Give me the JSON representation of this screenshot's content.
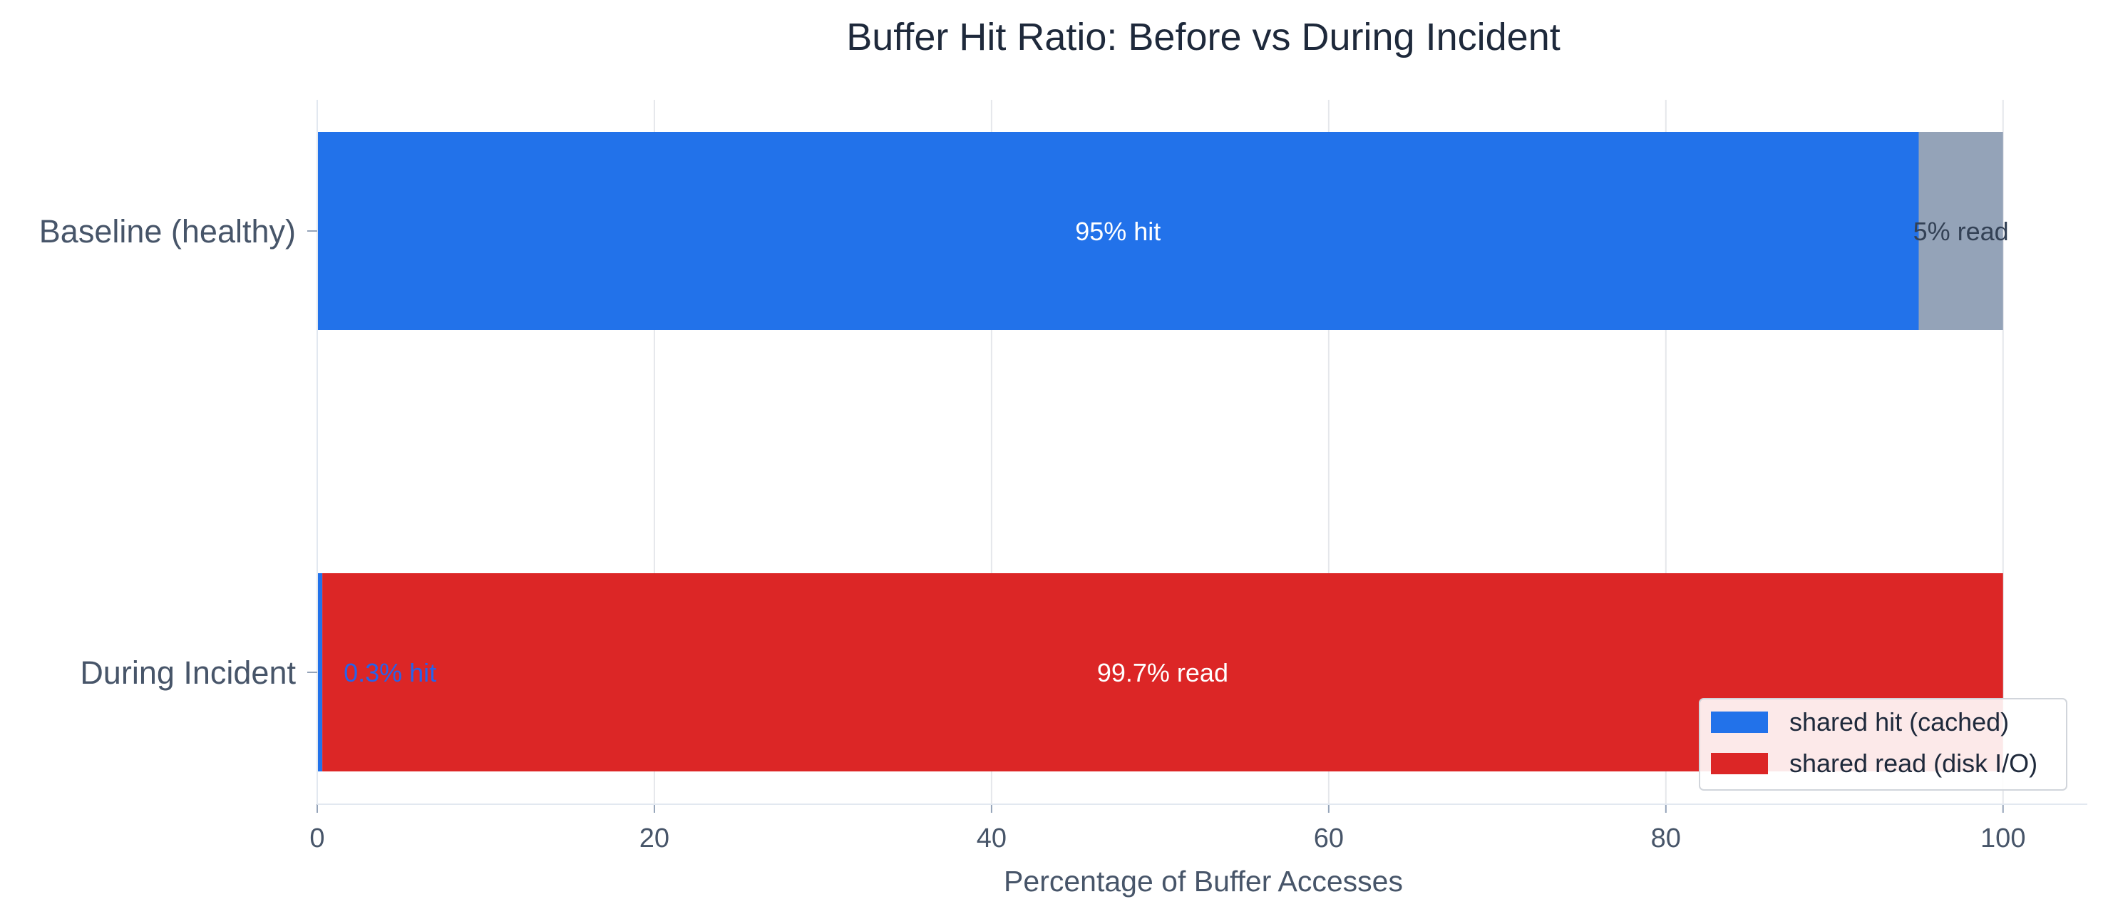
{
  "chart_data": {
    "type": "bar",
    "orientation": "horizontal",
    "stacked": true,
    "title": "Buffer Hit Ratio: Before vs During Incident",
    "xlabel": "Percentage of Buffer Accesses",
    "ylabel": "",
    "xlim": [
      0,
      105
    ],
    "xticks": [
      0,
      20,
      40,
      60,
      80,
      100
    ],
    "grid": "vertical",
    "legend_position": "bottom-right",
    "categories": [
      "Baseline (healthy)",
      "During Incident"
    ],
    "segments": [
      {
        "category": "Baseline (healthy)",
        "parts": [
          {
            "value": 95,
            "color": "#2272EA",
            "label": "95% hit",
            "label_color": "#ffffff",
            "label_pos": "center"
          },
          {
            "value": 5,
            "color": "#94A3B8",
            "label": "5% read",
            "label_color": "#334155",
            "label_pos": "center"
          }
        ]
      },
      {
        "category": "During Incident",
        "parts": [
          {
            "value": 0.3,
            "color": "#2272EA",
            "label": "0.3% hit",
            "label_color": "#2563EB",
            "label_pos": "outside"
          },
          {
            "value": 99.7,
            "color": "#DC2626",
            "label": "99.7% read",
            "label_color": "#ffffff",
            "label_pos": "center"
          }
        ]
      }
    ],
    "legend": [
      {
        "name": "shared hit (cached)",
        "color": "#2272EA"
      },
      {
        "name": "shared read (disk I/O)",
        "color": "#DC2626"
      }
    ]
  }
}
